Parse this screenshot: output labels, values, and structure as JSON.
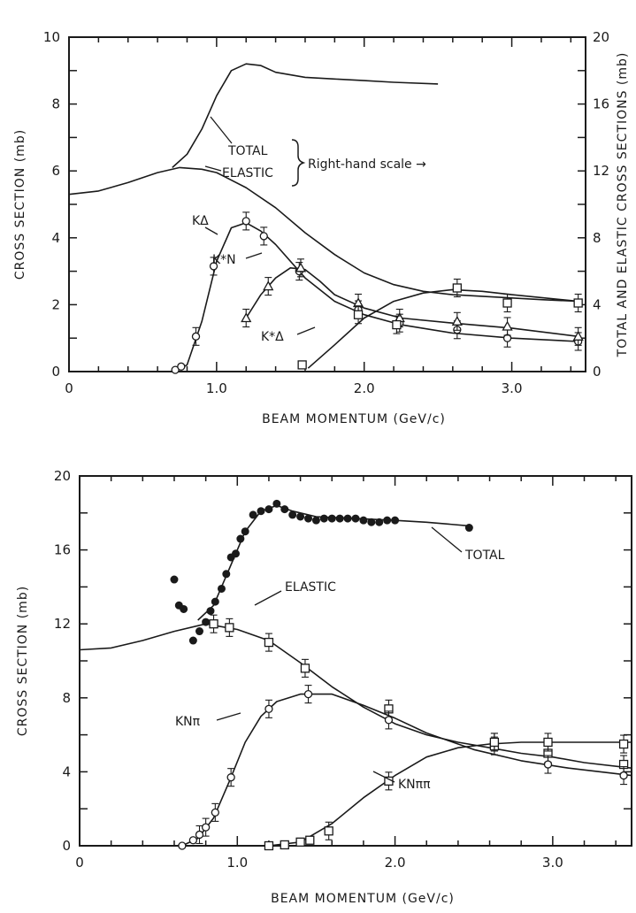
{
  "chart_data": [
    {
      "type": "line",
      "xlabel": "BEAM MOMENTUM  (GeV/c)",
      "ylabel": "CROSS SECTION (mb)",
      "ylabel_right": "TOTAL AND ELASTIC CROSS SECTIONS (mb)",
      "xlim": [
        0,
        3.5
      ],
      "ylim": [
        0,
        10
      ],
      "ylim_right": [
        0,
        20
      ],
      "x_ticks": [
        0,
        1.0,
        2.0,
        3.0
      ],
      "x_tick_labels": [
        "0",
        "1.0",
        "2.0",
        "3.0"
      ],
      "y_ticks": [
        0,
        2,
        4,
        6,
        8,
        10
      ],
      "y_tick_labels": [
        "0",
        "2",
        "4",
        "6",
        "8",
        "10"
      ],
      "y_right_ticks": [
        0,
        4,
        8,
        12,
        16,
        20
      ],
      "y_right_tick_labels": [
        "0",
        "4",
        "8",
        "12",
        "16",
        "20"
      ],
      "grid": false,
      "brace_label": "Right-hand scale →",
      "series": [
        {
          "name": "TOTAL",
          "axis": "right",
          "marker": "none",
          "x": [
            0.7,
            0.8,
            0.9,
            1.0,
            1.1,
            1.2,
            1.3,
            1.4,
            1.6,
            1.8,
            2.0,
            2.2,
            2.5
          ],
          "y": [
            12.2,
            13.0,
            14.5,
            16.5,
            18.0,
            18.4,
            18.3,
            17.9,
            17.6,
            17.5,
            17.4,
            17.3,
            17.2
          ]
        },
        {
          "name": "ELASTIC",
          "axis": "right",
          "marker": "none",
          "x": [
            0,
            0.2,
            0.4,
            0.6,
            0.75,
            0.9,
            1.0,
            1.2,
            1.4,
            1.6,
            1.8,
            2.0,
            2.2,
            2.4,
            2.6,
            2.8,
            3.0,
            3.2,
            3.45
          ],
          "y": [
            10.6,
            10.8,
            11.3,
            11.9,
            12.2,
            12.1,
            11.9,
            11.0,
            9.8,
            8.3,
            7.0,
            5.9,
            5.2,
            4.8,
            4.6,
            4.5,
            4.4,
            4.3,
            4.2
          ]
        },
        {
          "name": "KΔ",
          "axis": "left",
          "marker": "circle",
          "x": [
            0.72,
            0.76,
            0.86,
            0.98,
            1.2,
            1.32,
            1.56,
            1.96,
            2.24,
            2.63,
            2.97,
            3.45
          ],
          "y": [
            0.05,
            0.15,
            1.05,
            3.15,
            4.5,
            4.05,
            3.0,
            1.85,
            1.45,
            1.25,
            1.0,
            0.9
          ],
          "curve_x": [
            0.72,
            0.8,
            0.9,
            1.0,
            1.1,
            1.2,
            1.3,
            1.4,
            1.6,
            1.8,
            2.0,
            2.25,
            2.6,
            3.0,
            3.45
          ],
          "curve_y": [
            0.0,
            0.2,
            1.5,
            3.3,
            4.3,
            4.45,
            4.2,
            3.8,
            2.8,
            2.1,
            1.7,
            1.4,
            1.15,
            1.0,
            0.9
          ]
        },
        {
          "name": "K*N",
          "axis": "left",
          "marker": "triangle",
          "x": [
            1.2,
            1.35,
            1.57,
            1.96,
            2.24,
            2.63,
            2.97,
            3.45
          ],
          "y": [
            1.6,
            2.55,
            3.1,
            2.05,
            1.6,
            1.5,
            1.35,
            1.05
          ],
          "curve_x": [
            1.2,
            1.3,
            1.4,
            1.5,
            1.6,
            1.7,
            1.8,
            2.0,
            2.25,
            2.6,
            3.0,
            3.45
          ],
          "curve_y": [
            1.6,
            2.3,
            2.8,
            3.1,
            3.05,
            2.7,
            2.3,
            1.9,
            1.6,
            1.45,
            1.3,
            1.05
          ]
        },
        {
          "name": "K*Δ",
          "axis": "left",
          "marker": "square",
          "x": [
            1.58,
            1.96,
            2.22,
            2.63,
            2.97,
            3.45
          ],
          "y": [
            0.2,
            1.7,
            1.4,
            2.5,
            2.05,
            2.05
          ],
          "curve_x": [
            1.62,
            1.8,
            2.0,
            2.2,
            2.4,
            2.6,
            2.8,
            3.0,
            3.45
          ],
          "curve_y": [
            0.1,
            0.8,
            1.6,
            2.1,
            2.35,
            2.45,
            2.4,
            2.3,
            2.1
          ]
        }
      ],
      "annotations": [
        "TOTAL",
        "ELASTIC",
        "KΔ",
        "K*N",
        "K*Δ"
      ]
    },
    {
      "type": "line",
      "xlabel": "BEAM MOMENTUM  (GeV/c)",
      "ylabel": "CROSS SECTION (mb)",
      "xlim": [
        0,
        3.5
      ],
      "ylim": [
        0,
        20
      ],
      "x_ticks": [
        0,
        1.0,
        2.0,
        3.0
      ],
      "x_tick_labels": [
        "0",
        "1.0",
        "2.0",
        "3.0"
      ],
      "y_ticks": [
        0,
        4,
        8,
        12,
        16,
        20
      ],
      "y_tick_labels": [
        "0",
        "4",
        "8",
        "12",
        "16",
        "20"
      ],
      "grid": false,
      "series": [
        {
          "name": "TOTAL",
          "marker": "filled-circle",
          "x": [
            0.6,
            0.63,
            0.66,
            0.72,
            0.76,
            0.8,
            0.83,
            0.86,
            0.9,
            0.93,
            0.96,
            0.99,
            1.02,
            1.05,
            1.1,
            1.15,
            1.2,
            1.25,
            1.3,
            1.35,
            1.4,
            1.45,
            1.5,
            1.55,
            1.6,
            1.65,
            1.7,
            1.75,
            1.8,
            1.85,
            1.9,
            1.95,
            2.0,
            2.47
          ],
          "y": [
            14.4,
            13.0,
            12.8,
            11.1,
            11.6,
            12.1,
            12.7,
            13.2,
            13.9,
            14.7,
            15.6,
            15.8,
            16.6,
            17.0,
            17.9,
            18.1,
            18.2,
            18.5,
            18.2,
            17.9,
            17.8,
            17.7,
            17.6,
            17.7,
            17.7,
            17.7,
            17.7,
            17.7,
            17.6,
            17.5,
            17.5,
            17.6,
            17.6,
            17.2
          ],
          "curve_x": [
            0.75,
            0.85,
            0.95,
            1.05,
            1.15,
            1.25,
            1.35,
            1.5,
            1.75,
            2.0,
            2.2,
            2.47
          ],
          "curve_y": [
            12.2,
            13.0,
            15.0,
            17.0,
            18.1,
            18.4,
            18.1,
            17.8,
            17.7,
            17.6,
            17.5,
            17.3
          ]
        },
        {
          "name": "ELASTIC",
          "marker": "square",
          "x": [
            0.85,
            0.95,
            1.2,
            1.43,
            1.96,
            2.63,
            2.97,
            3.45
          ],
          "y": [
            12.0,
            11.8,
            11.0,
            9.6,
            7.4,
            5.4,
            5.0,
            4.4
          ],
          "curve_x": [
            0,
            0.2,
            0.4,
            0.6,
            0.8,
            1.0,
            1.2,
            1.4,
            1.6,
            1.8,
            2.0,
            2.2,
            2.4,
            2.6,
            2.8,
            3.0,
            3.2,
            3.5
          ],
          "curve_y": [
            10.6,
            10.7,
            11.1,
            11.6,
            12.0,
            11.7,
            11.1,
            9.9,
            8.6,
            7.5,
            6.6,
            6.0,
            5.6,
            5.3,
            5.0,
            4.8,
            4.5,
            4.2
          ]
        },
        {
          "name": "KNπ",
          "marker": "circle",
          "x": [
            0.65,
            0.72,
            0.76,
            0.8,
            0.86,
            0.96,
            1.2,
            1.45,
            1.96,
            2.63,
            2.97,
            3.45
          ],
          "y": [
            0.0,
            0.3,
            0.6,
            1.0,
            1.8,
            3.7,
            7.4,
            8.2,
            6.8,
            5.6,
            4.4,
            3.8
          ],
          "curve_x": [
            0.65,
            0.75,
            0.85,
            0.95,
            1.05,
            1.15,
            1.25,
            1.4,
            1.6,
            1.8,
            2.0,
            2.2,
            2.5,
            2.8,
            3.1,
            3.5
          ],
          "curve_y": [
            0.0,
            0.4,
            1.5,
            3.5,
            5.6,
            7.0,
            7.8,
            8.2,
            8.2,
            7.6,
            6.9,
            6.1,
            5.2,
            4.6,
            4.2,
            3.8
          ]
        },
        {
          "name": "KNππ",
          "marker": "square",
          "x": [
            1.2,
            1.3,
            1.4,
            1.46,
            1.58,
            1.96,
            2.63,
            2.97,
            3.45
          ],
          "y": [
            0.0,
            0.05,
            0.2,
            0.3,
            0.8,
            3.5,
            5.6,
            5.6,
            5.5
          ],
          "curve_x": [
            1.2,
            1.4,
            1.6,
            1.8,
            2.0,
            2.2,
            2.4,
            2.6,
            2.8,
            3.1,
            3.5
          ],
          "curve_y": [
            0.0,
            0.2,
            1.2,
            2.6,
            3.8,
            4.8,
            5.3,
            5.5,
            5.6,
            5.6,
            5.6
          ]
        }
      ],
      "annotations": [
        "TOTAL",
        "ELASTIC",
        "KNπ",
        "KNππ"
      ]
    }
  ]
}
